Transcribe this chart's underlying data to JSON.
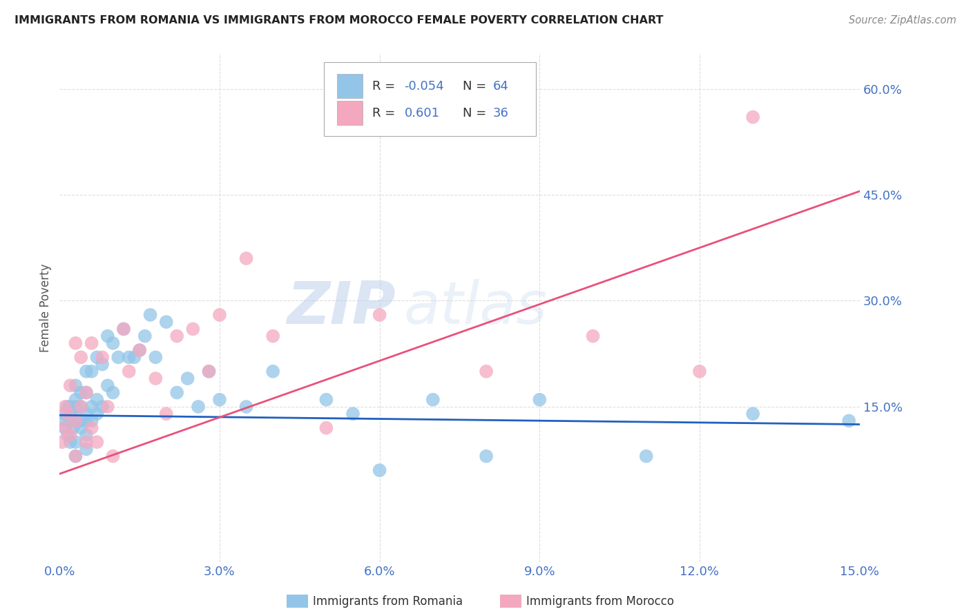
{
  "title": "IMMIGRANTS FROM ROMANIA VS IMMIGRANTS FROM MOROCCO FEMALE POVERTY CORRELATION CHART",
  "source": "Source: ZipAtlas.com",
  "ylabel": "Female Poverty",
  "xlim": [
    0.0,
    0.15
  ],
  "ylim": [
    -0.07,
    0.65
  ],
  "yticks": [
    0.15,
    0.3,
    0.45,
    0.6
  ],
  "ytick_labels": [
    "15.0%",
    "30.0%",
    "45.0%",
    "60.0%"
  ],
  "xticks": [
    0.0,
    0.03,
    0.06,
    0.09,
    0.12,
    0.15
  ],
  "xtick_labels": [
    "0.0%",
    "3.0%",
    "6.0%",
    "9.0%",
    "12.0%",
    "15.0%"
  ],
  "romania_color": "#92C5E8",
  "morocco_color": "#F4A8C0",
  "romania_line_color": "#2060C0",
  "morocco_line_color": "#E8507A",
  "romania_R": -0.054,
  "romania_N": 64,
  "morocco_R": 0.601,
  "morocco_N": 36,
  "background_color": "#ffffff",
  "grid_color": "#cccccc",
  "watermark_zip": "ZIP",
  "watermark_atlas": "atlas",
  "legend_label_romania": "Immigrants from Romania",
  "legend_label_morocco": "Immigrants from Morocco",
  "romania_x": [
    0.0005,
    0.001,
    0.001,
    0.0015,
    0.0015,
    0.002,
    0.002,
    0.002,
    0.002,
    0.0025,
    0.0025,
    0.003,
    0.003,
    0.003,
    0.003,
    0.003,
    0.003,
    0.004,
    0.004,
    0.004,
    0.004,
    0.005,
    0.005,
    0.005,
    0.005,
    0.005,
    0.005,
    0.006,
    0.006,
    0.006,
    0.007,
    0.007,
    0.007,
    0.008,
    0.008,
    0.009,
    0.009,
    0.01,
    0.01,
    0.011,
    0.012,
    0.013,
    0.014,
    0.015,
    0.016,
    0.017,
    0.018,
    0.02,
    0.022,
    0.024,
    0.026,
    0.028,
    0.03,
    0.035,
    0.04,
    0.05,
    0.055,
    0.06,
    0.07,
    0.08,
    0.09,
    0.11,
    0.13,
    0.148
  ],
  "romania_y": [
    0.13,
    0.14,
    0.12,
    0.11,
    0.15,
    0.1,
    0.13,
    0.15,
    0.14,
    0.12,
    0.14,
    0.08,
    0.1,
    0.13,
    0.15,
    0.16,
    0.18,
    0.12,
    0.13,
    0.15,
    0.17,
    0.09,
    0.11,
    0.13,
    0.14,
    0.17,
    0.2,
    0.13,
    0.15,
    0.2,
    0.14,
    0.16,
    0.22,
    0.15,
    0.21,
    0.18,
    0.25,
    0.17,
    0.24,
    0.22,
    0.26,
    0.22,
    0.22,
    0.23,
    0.25,
    0.28,
    0.22,
    0.27,
    0.17,
    0.19,
    0.15,
    0.2,
    0.16,
    0.15,
    0.2,
    0.16,
    0.14,
    0.06,
    0.16,
    0.08,
    0.16,
    0.08,
    0.14,
    0.13
  ],
  "morocco_x": [
    0.0005,
    0.001,
    0.001,
    0.0015,
    0.002,
    0.002,
    0.003,
    0.003,
    0.003,
    0.004,
    0.004,
    0.005,
    0.005,
    0.006,
    0.006,
    0.007,
    0.008,
    0.009,
    0.01,
    0.012,
    0.013,
    0.015,
    0.018,
    0.02,
    0.022,
    0.025,
    0.028,
    0.03,
    0.035,
    0.04,
    0.05,
    0.06,
    0.08,
    0.1,
    0.12,
    0.13
  ],
  "morocco_y": [
    0.1,
    0.12,
    0.15,
    0.14,
    0.11,
    0.18,
    0.08,
    0.13,
    0.24,
    0.15,
    0.22,
    0.1,
    0.17,
    0.24,
    0.12,
    0.1,
    0.22,
    0.15,
    0.08,
    0.26,
    0.2,
    0.23,
    0.19,
    0.14,
    0.25,
    0.26,
    0.2,
    0.28,
    0.36,
    0.25,
    0.12,
    0.28,
    0.2,
    0.25,
    0.2,
    0.56
  ]
}
